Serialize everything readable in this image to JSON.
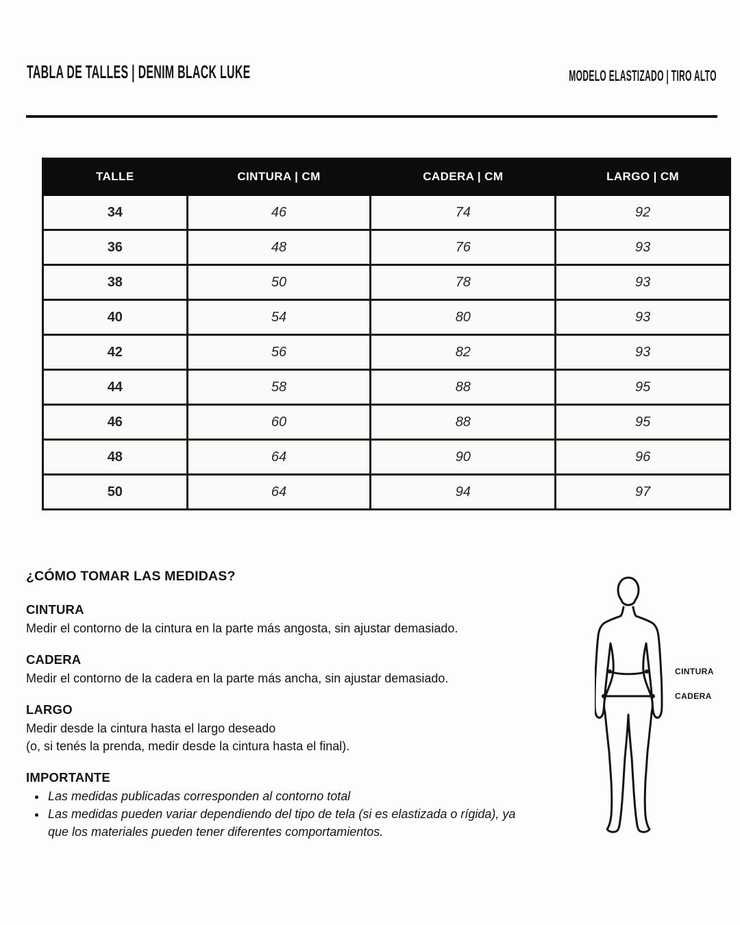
{
  "header": {
    "title": "TABLA DE TALLES | DENIM BLACK LUKE",
    "subtitle": "MODELO ELASTIZADO | TIRO ALTO"
  },
  "table": {
    "columns": [
      "TALLE",
      "CINTURA | CM",
      "CADERA | CM",
      "LARGO | CM"
    ],
    "rows": [
      [
        "34",
        "46",
        "74",
        "92"
      ],
      [
        "36",
        "48",
        "76",
        "93"
      ],
      [
        "38",
        "50",
        "78",
        "93"
      ],
      [
        "40",
        "54",
        "80",
        "93"
      ],
      [
        "42",
        "56",
        "82",
        "93"
      ],
      [
        "44",
        "58",
        "88",
        "95"
      ],
      [
        "46",
        "60",
        "88",
        "95"
      ],
      [
        "48",
        "64",
        "90",
        "96"
      ],
      [
        "50",
        "64",
        "94",
        "97"
      ]
    ]
  },
  "measures": {
    "heading": "¿CÓMO TOMAR LAS MEDIDAS?",
    "sections": [
      {
        "title": "CINTURA",
        "lines": [
          "Medir el contorno de la cintura en la parte más angosta, sin ajustar demasiado."
        ]
      },
      {
        "title": "CADERA",
        "lines": [
          "Medir el contorno de la cadera en la parte más ancha, sin ajustar demasiado."
        ]
      },
      {
        "title": "LARGO",
        "lines": [
          "Medir desde la cintura hasta el largo deseado",
          "(o, si tenés la prenda, medir desde la cintura hasta el final)."
        ]
      }
    ],
    "important": {
      "title": "IMPORTANTE",
      "bullets": [
        "Las medidas publicadas corresponden al contorno total",
        "Las medidas pueden variar dependiendo del tipo de tela (si es elastizada o rígida), ya que los materiales pueden tener diferentes comportamientos."
      ]
    }
  },
  "figure": {
    "labels": {
      "waist": "CINTURA",
      "hip": "CADERA"
    }
  },
  "colors": {
    "ink": "#141414",
    "rule": "#151515",
    "table_header_bg": "#0c0c0c",
    "table_header_text": "#ffffff",
    "table_border": "#181818",
    "cell_bg": "#fcf9f9",
    "page_bg": "#fefdfd"
  }
}
